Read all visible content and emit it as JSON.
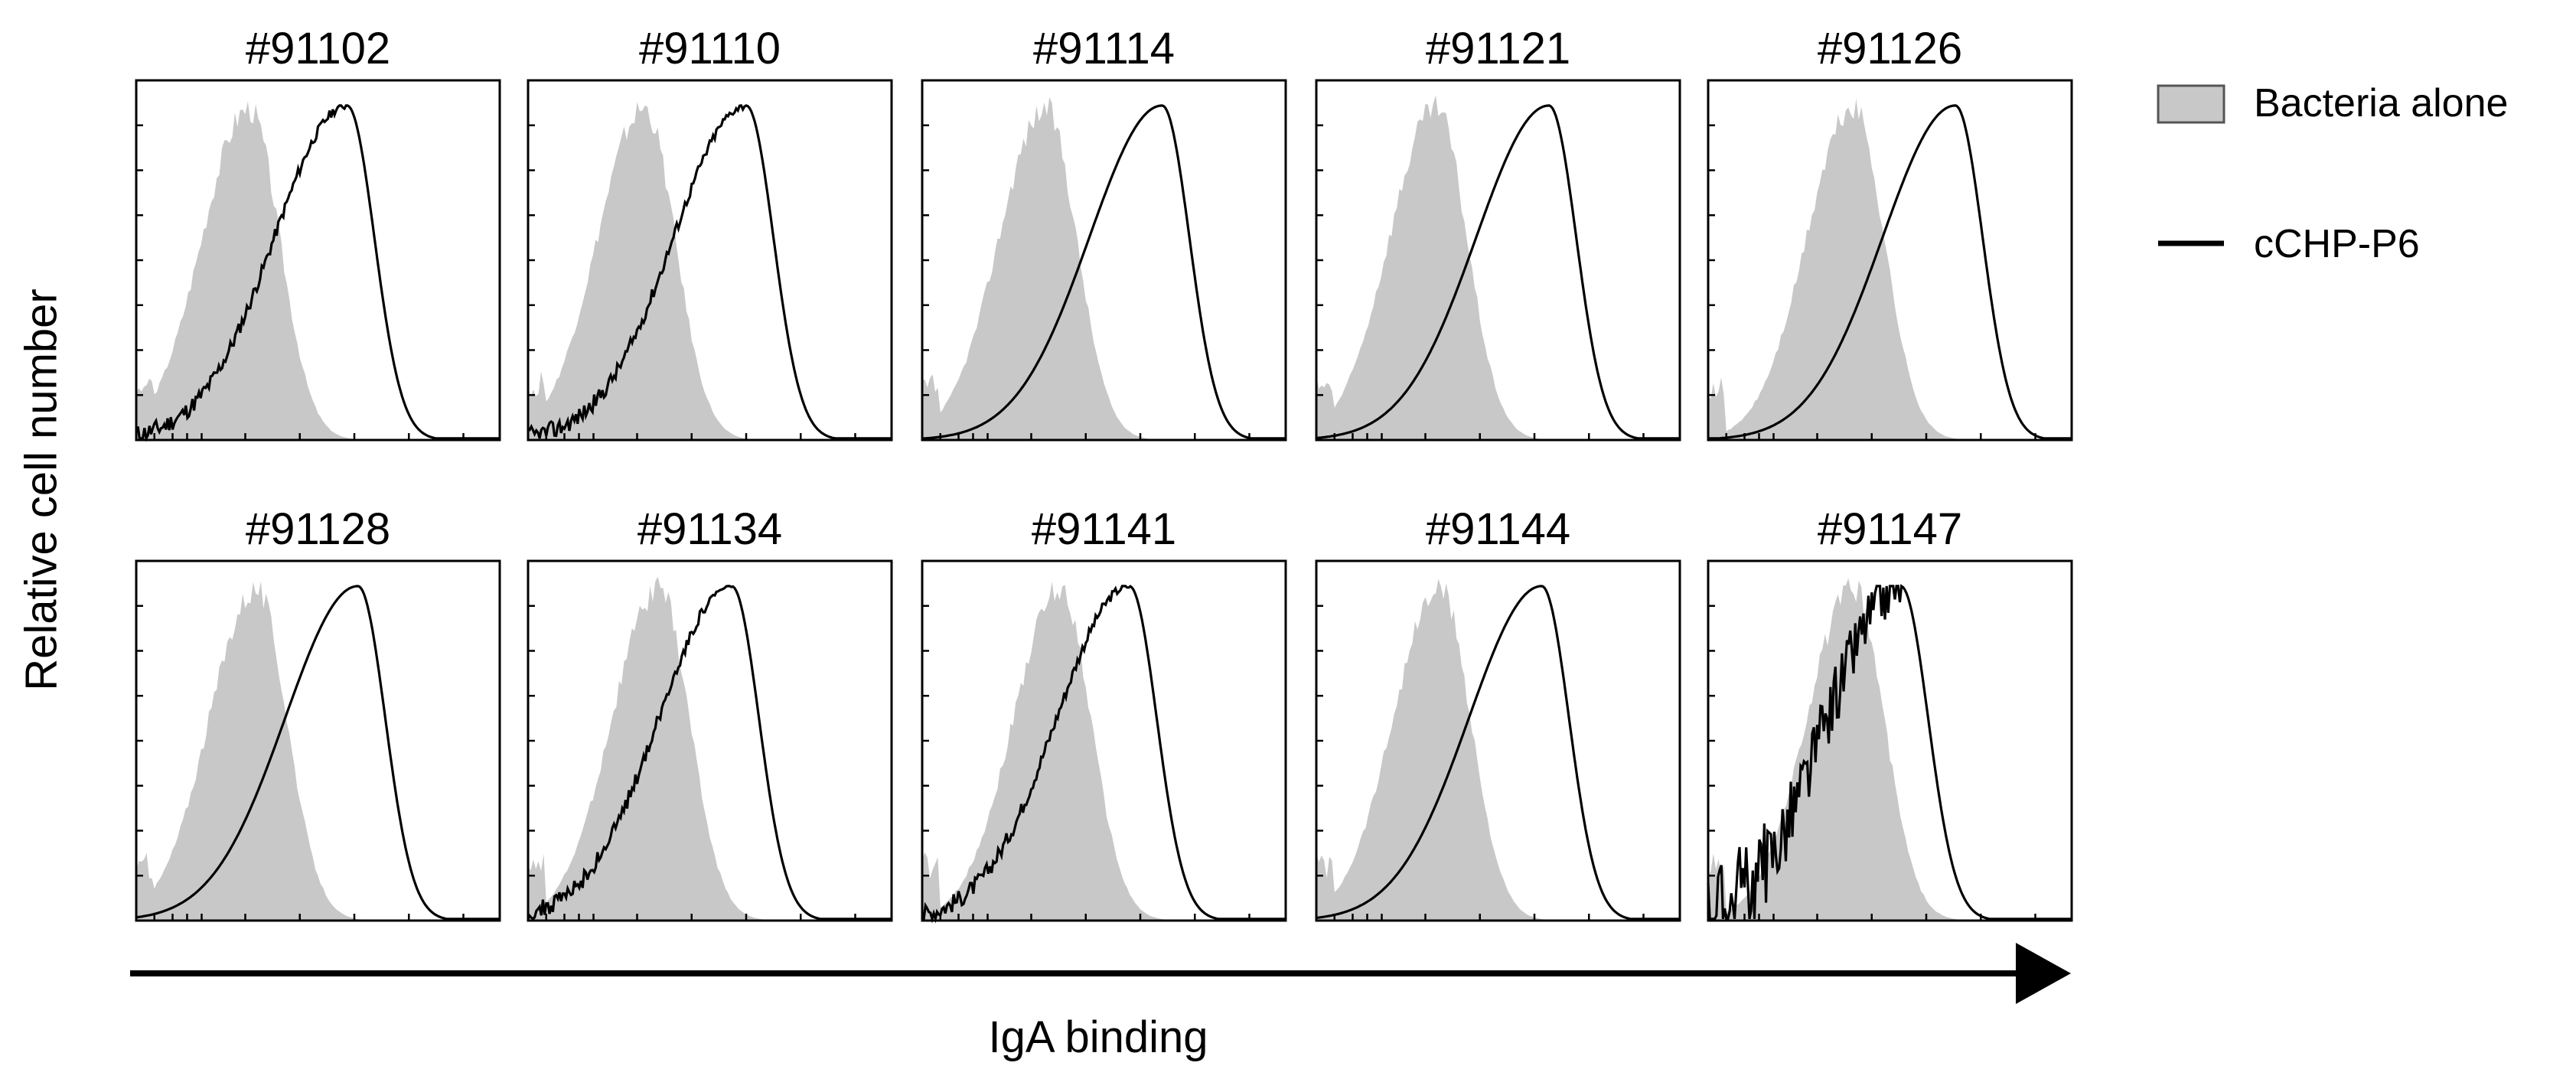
{
  "chart_data": {
    "type": "area",
    "figure": {
      "ylabel": "Relative cell number",
      "xlabel": "IgA binding",
      "legend": {
        "placement": "top-right",
        "entries": [
          {
            "label": "Bacteria alone",
            "style": "filled",
            "color": "#c8c8c8"
          },
          {
            "label": "cCHP-P6",
            "style": "line",
            "color": "#000000"
          }
        ]
      },
      "grid": false,
      "x_scale": "log (fluorescence intensity, unlabeled)",
      "ylim": [
        0,
        1
      ]
    },
    "panels": [
      {
        "title": "#91102",
        "background_mode": 0.31,
        "sample_mode": 0.58,
        "sample_noise": 0.02
      },
      {
        "title": "#91110",
        "background_mode": 0.32,
        "sample_mode": 0.6,
        "sample_noise": 0.02
      },
      {
        "title": "#91114",
        "background_mode": 0.34,
        "sample_mode": 0.66,
        "sample_noise": 0.0
      },
      {
        "title": "#91121",
        "background_mode": 0.33,
        "sample_mode": 0.64,
        "sample_noise": 0.0
      },
      {
        "title": "#91126",
        "background_mode": 0.4,
        "sample_mode": 0.68,
        "sample_noise": 0.0
      },
      {
        "title": "#91128",
        "background_mode": 0.33,
        "sample_mode": 0.61,
        "sample_noise": 0.0
      },
      {
        "title": "#91134",
        "background_mode": 0.36,
        "sample_mode": 0.56,
        "sample_noise": 0.02
      },
      {
        "title": "#91141",
        "background_mode": 0.38,
        "sample_mode": 0.57,
        "sample_noise": 0.02
      },
      {
        "title": "#91144",
        "background_mode": 0.34,
        "sample_mode": 0.62,
        "sample_noise": 0.0
      },
      {
        "title": "#91147",
        "background_mode": 0.4,
        "sample_mode": 0.53,
        "sample_noise": 0.1
      }
    ]
  }
}
